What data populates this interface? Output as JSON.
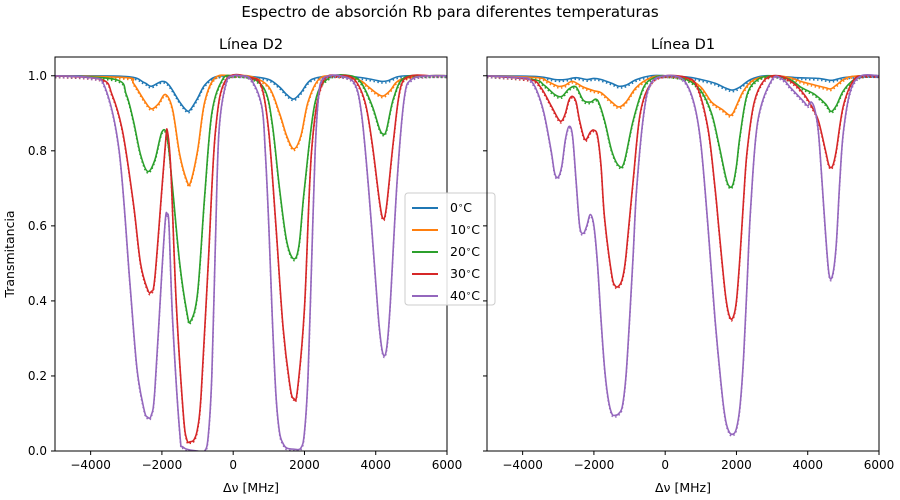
{
  "figure": {
    "title": "Espectro de absorción Rb para diferentes temperaturas"
  },
  "chart_data": [
    {
      "type": "line",
      "title": "Línea D2",
      "xlabel": "Δν [MHz]",
      "ylabel": "Transmitancia",
      "xlim": [
        -5000,
        6000
      ],
      "ylim": [
        0,
        1.05
      ],
      "xticks": [
        -4000,
        -2000,
        0,
        2000,
        4000,
        6000
      ],
      "xtick_labels": [
        "−4000",
        "−2000",
        "0",
        "2000",
        "4000",
        "6000"
      ],
      "yticks": [
        0.0,
        0.2,
        0.4,
        0.6,
        0.8,
        1.0
      ],
      "ytick_labels": [
        "0.0",
        "0.2",
        "0.4",
        "0.6",
        "0.8",
        "1.0"
      ],
      "grid": false,
      "legend": "center-right",
      "style_note": "solid = model, dotted = measured",
      "series": [
        {
          "name": "0$^\\circ$C",
          "label": "0",
          "color": "#1f77b4",
          "x": [
            -5000,
            -3000,
            -2500,
            -2300,
            -2000,
            -1800,
            -1500,
            -1300,
            -1200,
            -1000,
            -800,
            -500,
            0,
            500,
            1000,
            1300,
            1500,
            1700,
            1900,
            2200,
            2800,
            3500,
            3900,
            4100,
            4200,
            4350,
            4600,
            4900,
            5500,
            6000
          ],
          "y": [
            1.0,
            0.998,
            0.982,
            0.972,
            0.985,
            0.975,
            0.93,
            0.907,
            0.91,
            0.94,
            0.975,
            0.997,
            1.0,
            0.998,
            0.99,
            0.97,
            0.95,
            0.938,
            0.955,
            0.99,
            1.0,
            0.996,
            0.99,
            0.986,
            0.985,
            0.987,
            0.997,
            1.0,
            1.0,
            1.0
          ]
        },
        {
          "name": "10$^\\circ$C",
          "label": "10",
          "color": "#ff7f0e",
          "x": [
            -5000,
            -3000,
            -2800,
            -2500,
            -2300,
            -2100,
            -1900,
            -1700,
            -1500,
            -1300,
            -1200,
            -1000,
            -800,
            -500,
            0,
            500,
            1000,
            1300,
            1500,
            1700,
            1900,
            2100,
            2400,
            2800,
            3500,
            3800,
            4000,
            4200,
            4400,
            4700,
            5500,
            6000
          ],
          "y": [
            1.0,
            0.995,
            0.98,
            0.935,
            0.912,
            0.925,
            0.95,
            0.91,
            0.79,
            0.72,
            0.715,
            0.8,
            0.93,
            0.995,
            1.0,
            0.998,
            0.97,
            0.9,
            0.84,
            0.805,
            0.84,
            0.93,
            0.99,
            1.0,
            0.99,
            0.97,
            0.955,
            0.946,
            0.96,
            0.99,
            1.0,
            1.0
          ]
        },
        {
          "name": "20$^\\circ$C",
          "label": "20",
          "color": "#2ca02c",
          "x": [
            -5000,
            -3300,
            -3000,
            -2800,
            -2600,
            -2400,
            -2200,
            -2000,
            -1850,
            -1700,
            -1500,
            -1300,
            -1200,
            -1000,
            -800,
            -600,
            -300,
            0,
            500,
            900,
            1100,
            1300,
            1500,
            1700,
            1850,
            2000,
            2300,
            2700,
            3300,
            3600,
            3900,
            4100,
            4200,
            4300,
            4500,
            4800,
            5500,
            6000
          ],
          "y": [
            1.0,
            0.99,
            0.95,
            0.88,
            0.79,
            0.745,
            0.775,
            0.85,
            0.835,
            0.7,
            0.5,
            0.37,
            0.345,
            0.42,
            0.68,
            0.9,
            0.99,
            1.0,
            0.995,
            0.96,
            0.87,
            0.7,
            0.56,
            0.512,
            0.55,
            0.7,
            0.93,
            0.995,
            1.0,
            0.98,
            0.92,
            0.86,
            0.845,
            0.855,
            0.94,
            0.995,
            1.0,
            1.0
          ]
        },
        {
          "name": "30$^\\circ$C",
          "label": "30",
          "color": "#d62728",
          "x": [
            -5000,
            -3700,
            -3400,
            -3100,
            -2800,
            -2600,
            -2400,
            -2300,
            -2200,
            -2000,
            -1900,
            -1850,
            -1750,
            -1600,
            -1400,
            -1300,
            -1200,
            -1100,
            -1000,
            -900,
            -700,
            -500,
            -200,
            500,
            800,
            1000,
            1200,
            1400,
            1600,
            1700,
            1800,
            2000,
            2200,
            2500,
            3000,
            3400,
            3700,
            3900,
            4100,
            4200,
            4300,
            4500,
            4700,
            5000,
            5500,
            6000
          ],
          "y": [
            1.0,
            0.99,
            0.95,
            0.85,
            0.66,
            0.5,
            0.43,
            0.425,
            0.46,
            0.7,
            0.82,
            0.855,
            0.75,
            0.4,
            0.1,
            0.03,
            0.025,
            0.03,
            0.06,
            0.15,
            0.5,
            0.85,
            0.99,
            0.995,
            0.97,
            0.85,
            0.6,
            0.33,
            0.17,
            0.14,
            0.16,
            0.38,
            0.8,
            0.98,
            1.0,
            0.99,
            0.93,
            0.82,
            0.67,
            0.62,
            0.65,
            0.83,
            0.97,
            1.0,
            1.0,
            1.0
          ]
        },
        {
          "name": "40$^\\circ$C",
          "label": "40",
          "color": "#9467bd",
          "x": [
            -5000,
            -4000,
            -3600,
            -3200,
            -2900,
            -2700,
            -2500,
            -2400,
            -2300,
            -2200,
            -2000,
            -1900,
            -1850,
            -1800,
            -1700,
            -1500,
            -1400,
            -1000,
            -800,
            -700,
            -600,
            -500,
            -400,
            -200,
            0,
            200,
            500,
            800,
            900,
            1000,
            1100,
            1200,
            1300,
            1400,
            1500,
            1700,
            1900,
            2000,
            2100,
            2200,
            2300,
            2400,
            2500,
            2700,
            3000,
            3400,
            3600,
            3800,
            4000,
            4100,
            4200,
            4300,
            4400,
            4600,
            4800,
            5000,
            5500,
            6000
          ],
          "y": [
            1.0,
            0.995,
            0.97,
            0.8,
            0.45,
            0.22,
            0.11,
            0.09,
            0.095,
            0.16,
            0.48,
            0.62,
            0.63,
            0.6,
            0.35,
            0.05,
            0.01,
            0.0,
            0.0,
            0.04,
            0.2,
            0.55,
            0.85,
            0.98,
            1.0,
            1.0,
            0.99,
            0.92,
            0.8,
            0.6,
            0.35,
            0.15,
            0.05,
            0.02,
            0.008,
            0.005,
            0.008,
            0.05,
            0.2,
            0.5,
            0.8,
            0.95,
            0.99,
            1.0,
            1.0,
            0.98,
            0.9,
            0.7,
            0.45,
            0.33,
            0.26,
            0.27,
            0.38,
            0.72,
            0.94,
            0.99,
            1.0,
            1.0
          ]
        }
      ]
    },
    {
      "type": "line",
      "title": "Línea D1",
      "xlabel": "Δν [MHz]",
      "ylabel": "",
      "xlim": [
        -5000,
        6000
      ],
      "ylim": [
        0,
        1.05
      ],
      "xticks": [
        -4000,
        -2000,
        0,
        2000,
        4000,
        6000
      ],
      "xtick_labels": [
        "−4000",
        "−2000",
        "0",
        "2000",
        "4000",
        "6000"
      ],
      "yticks": [
        0.0,
        0.2,
        0.4,
        0.6,
        0.8,
        1.0
      ],
      "ytick_labels": [
        "",
        "",
        "",
        "",
        "",
        ""
      ],
      "grid": false,
      "legend": "none",
      "style_note": "solid = model, dotted = measured",
      "series": [
        {
          "name": "0$^\\circ$C",
          "label": "0",
          "color": "#1f77b4",
          "x": [
            -5000,
            -3600,
            -3100,
            -2800,
            -2500,
            -2200,
            -2000,
            -1800,
            -1500,
            -1300,
            -1100,
            -800,
            -400,
            0,
            600,
            1000,
            1400,
            1700,
            1900,
            2100,
            2400,
            2800,
            3300,
            3700,
            4000,
            4300,
            4500,
            4700,
            5000,
            5500,
            6000
          ],
          "y": [
            1.0,
            0.998,
            0.99,
            0.99,
            0.995,
            0.99,
            0.993,
            0.99,
            0.98,
            0.972,
            0.975,
            0.99,
            1.0,
            1.0,
            0.997,
            0.99,
            0.98,
            0.967,
            0.962,
            0.97,
            0.99,
            1.0,
            0.998,
            0.995,
            0.994,
            0.993,
            0.99,
            0.988,
            0.995,
            1.0,
            1.0
          ]
        },
        {
          "name": "10$^\\circ$C",
          "label": "10",
          "color": "#ff7f0e",
          "x": [
            -5000,
            -3600,
            -3300,
            -3000,
            -2800,
            -2600,
            -2300,
            -2000,
            -1800,
            -1500,
            -1300,
            -1100,
            -800,
            -400,
            0,
            600,
            1000,
            1300,
            1600,
            1800,
            1900,
            2000,
            2200,
            2500,
            3000,
            3500,
            3800,
            4000,
            4200,
            4500,
            4650,
            4800,
            5100,
            5500,
            6000
          ],
          "y": [
            1.0,
            0.995,
            0.985,
            0.972,
            0.975,
            0.985,
            0.97,
            0.96,
            0.955,
            0.93,
            0.917,
            0.93,
            0.97,
            0.995,
            1.0,
            0.993,
            0.97,
            0.93,
            0.91,
            0.895,
            0.9,
            0.92,
            0.96,
            0.99,
            1.0,
            0.995,
            0.985,
            0.98,
            0.975,
            0.968,
            0.965,
            0.975,
            0.995,
            1.0,
            1.0
          ]
        },
        {
          "name": "20$^\\circ$C",
          "label": "20",
          "color": "#2ca02c",
          "x": [
            -5000,
            -3700,
            -3400,
            -3100,
            -2900,
            -2700,
            -2500,
            -2300,
            -2100,
            -1900,
            -1700,
            -1500,
            -1300,
            -1150,
            -900,
            -600,
            -300,
            0,
            600,
            1000,
            1300,
            1500,
            1700,
            1800,
            1900,
            2000,
            2100,
            2300,
            2600,
            3000,
            3500,
            3800,
            4000,
            4200,
            4500,
            4650,
            4800,
            5000,
            5300,
            5600,
            6000
          ],
          "y": [
            1.0,
            0.99,
            0.975,
            0.95,
            0.945,
            0.965,
            0.97,
            0.935,
            0.93,
            0.935,
            0.88,
            0.8,
            0.76,
            0.77,
            0.88,
            0.97,
            0.995,
            1.0,
            0.99,
            0.96,
            0.9,
            0.82,
            0.73,
            0.705,
            0.71,
            0.76,
            0.84,
            0.95,
            0.99,
            1.0,
            0.99,
            0.97,
            0.96,
            0.95,
            0.925,
            0.905,
            0.92,
            0.96,
            0.99,
            1.0,
            1.0
          ]
        },
        {
          "name": "30$^\\circ$C",
          "label": "30",
          "color": "#d62728",
          "x": [
            -5000,
            -3800,
            -3500,
            -3200,
            -3000,
            -2900,
            -2800,
            -2700,
            -2600,
            -2500,
            -2400,
            -2250,
            -2100,
            -2000,
            -1900,
            -1800,
            -1700,
            -1500,
            -1400,
            -1300,
            -1200,
            -1100,
            -900,
            -700,
            -400,
            0,
            600,
            900,
            1200,
            1400,
            1500,
            1600,
            1700,
            1800,
            1900,
            2000,
            2100,
            2200,
            2300,
            2500,
            2800,
            3200,
            3600,
            3900,
            4100,
            4300,
            4500,
            4600,
            4700,
            4800,
            5000,
            5300,
            5600,
            6000
          ],
          "y": [
            1.0,
            0.99,
            0.97,
            0.92,
            0.885,
            0.88,
            0.9,
            0.935,
            0.945,
            0.93,
            0.88,
            0.83,
            0.85,
            0.855,
            0.84,
            0.76,
            0.62,
            0.47,
            0.44,
            0.44,
            0.46,
            0.52,
            0.72,
            0.9,
            0.98,
            1.0,
            0.995,
            0.97,
            0.86,
            0.7,
            0.6,
            0.5,
            0.41,
            0.36,
            0.355,
            0.4,
            0.52,
            0.67,
            0.8,
            0.93,
            0.99,
            1.0,
            0.98,
            0.95,
            0.92,
            0.88,
            0.8,
            0.76,
            0.76,
            0.8,
            0.92,
            0.99,
            1.0,
            1.0
          ]
        },
        {
          "name": "40$^\\circ$C",
          "label": "40",
          "color": "#9467bd",
          "x": [
            -5000,
            -4000,
            -3800,
            -3600,
            -3400,
            -3200,
            -3100,
            -3000,
            -2900,
            -2800,
            -2700,
            -2600,
            -2500,
            -2400,
            -2300,
            -2200,
            -2100,
            -2000,
            -1900,
            -1800,
            -1700,
            -1600,
            -1500,
            -1400,
            -1300,
            -1200,
            -1100,
            -1000,
            -900,
            -800,
            -600,
            -400,
            0,
            500,
            800,
            1000,
            1200,
            1400,
            1600,
            1700,
            1800,
            1900,
            2000,
            2100,
            2200,
            2300,
            2400,
            2600,
            3000,
            3300,
            3500,
            3700,
            3800,
            3900,
            4000,
            4100,
            4200,
            4300,
            4400,
            4500,
            4600,
            4700,
            4800,
            4900,
            5000,
            5200,
            5500,
            6000
          ],
          "y": [
            1.0,
            0.995,
            0.99,
            0.96,
            0.9,
            0.8,
            0.74,
            0.73,
            0.76,
            0.83,
            0.865,
            0.84,
            0.72,
            0.6,
            0.58,
            0.6,
            0.63,
            0.6,
            0.5,
            0.35,
            0.22,
            0.14,
            0.1,
            0.095,
            0.1,
            0.12,
            0.2,
            0.35,
            0.52,
            0.7,
            0.9,
            0.98,
            1.0,
            0.99,
            0.93,
            0.82,
            0.6,
            0.35,
            0.15,
            0.08,
            0.05,
            0.045,
            0.06,
            0.12,
            0.25,
            0.45,
            0.65,
            0.88,
            0.99,
            0.99,
            0.97,
            0.95,
            0.94,
            0.93,
            0.92,
            0.93,
            0.91,
            0.85,
            0.72,
            0.58,
            0.47,
            0.47,
            0.55,
            0.72,
            0.85,
            0.96,
            1.0,
            1.0
          ]
        }
      ]
    }
  ]
}
